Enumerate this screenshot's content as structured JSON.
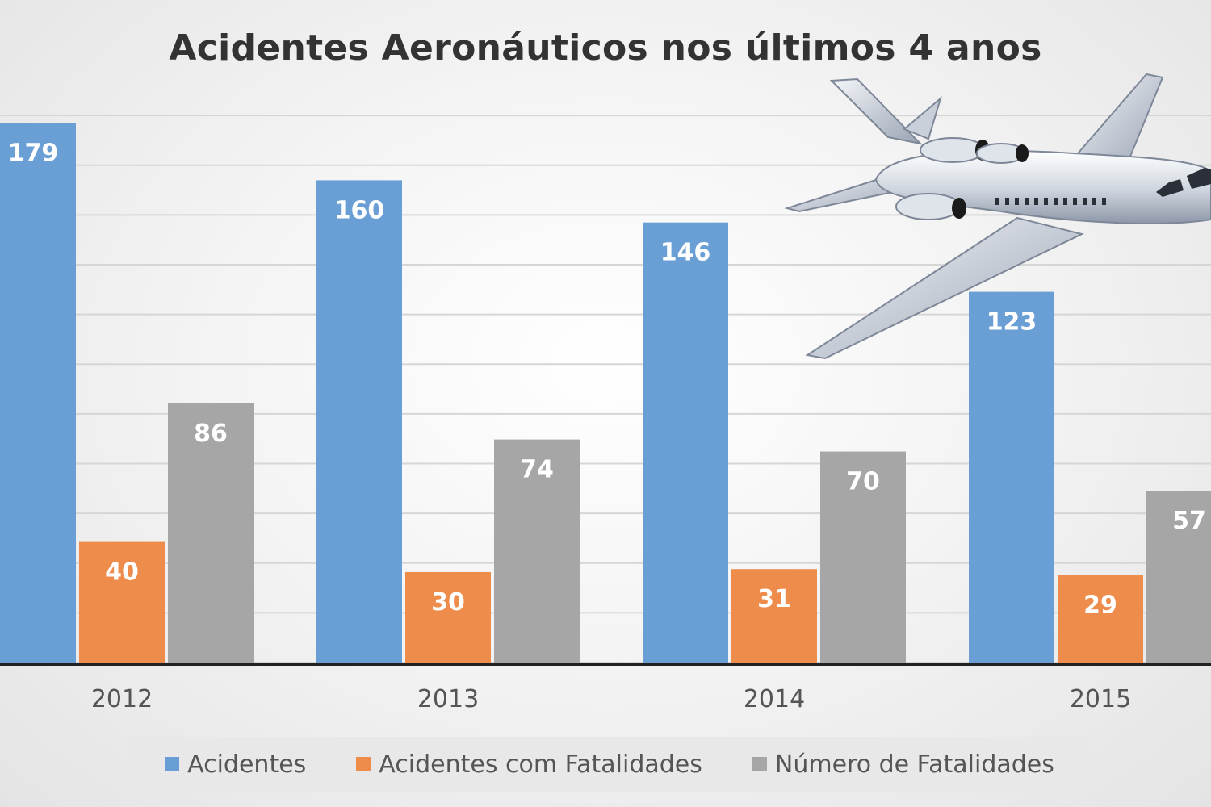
{
  "chart_data": {
    "type": "bar",
    "title": "Acidentes Aeronáuticos nos últimos 4 anos",
    "xlabel": "",
    "ylabel": "",
    "categories": [
      "2012",
      "2013",
      "2014",
      "2015"
    ],
    "series": [
      {
        "name": "Acidentes",
        "values": [
          179,
          160,
          146,
          123
        ],
        "color": "#6a9fd6"
      },
      {
        "name": "Acidentes com Fatalidades",
        "values": [
          40,
          30,
          31,
          29
        ],
        "color": "#ee8c4c"
      },
      {
        "name": "Número de Fatalidades",
        "values": [
          86,
          74,
          70,
          57
        ],
        "color": "#a6a6a6"
      }
    ],
    "ylim": [
      0,
      200
    ],
    "grid": true,
    "legend_position": "bottom",
    "data_labels": true
  },
  "decoration": {
    "icon": "airplane-icon"
  }
}
